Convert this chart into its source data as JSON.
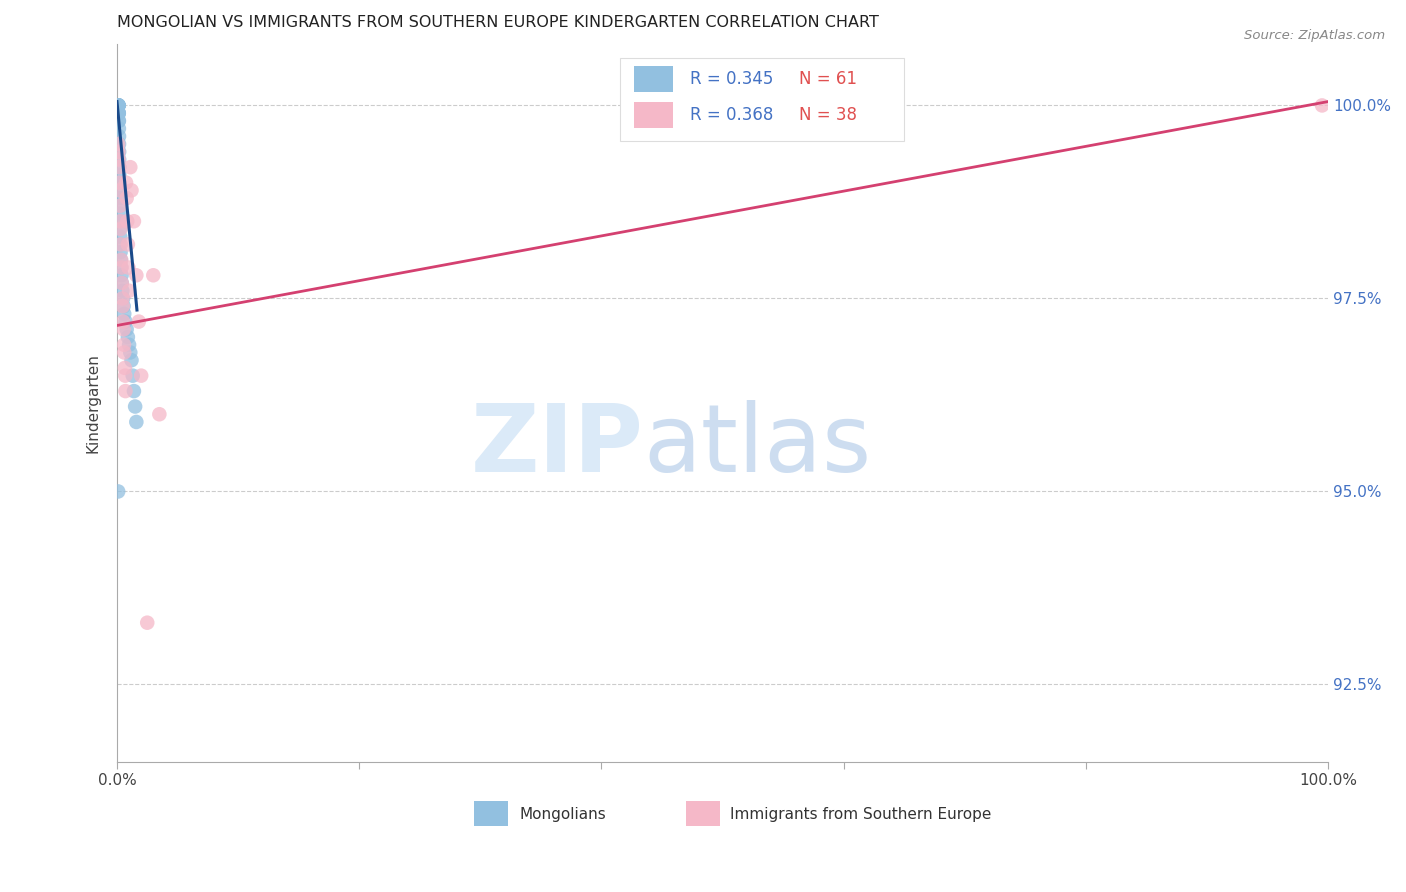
{
  "title": "MONGOLIAN VS IMMIGRANTS FROM SOUTHERN EUROPE KINDERGARTEN CORRELATION CHART",
  "source": "Source: ZipAtlas.com",
  "ylabel": "Kindergarten",
  "yticks": [
    92.5,
    95.0,
    97.5,
    100.0
  ],
  "ytick_labels": [
    "92.5%",
    "95.0%",
    "97.5%",
    "100.0%"
  ],
  "xmin": 0.0,
  "xmax": 100.0,
  "ymin": 91.5,
  "ymax": 100.8,
  "blue_color": "#92c0e0",
  "pink_color": "#f5b8c8",
  "blue_line_color": "#1a4a8a",
  "pink_line_color": "#d44070",
  "grid_color": "#cccccc",
  "background_color": "#ffffff",
  "legend_r_blue": "R = 0.345",
  "legend_n_blue": "N = 61",
  "legend_r_pink": "R = 0.368",
  "legend_n_pink": "N = 38",
  "blue_label": "Mongolians",
  "pink_label": "Immigrants from Southern Europe",
  "blue_scatter_x": [
    0.05,
    0.05,
    0.07,
    0.07,
    0.08,
    0.08,
    0.09,
    0.1,
    0.1,
    0.1,
    0.11,
    0.11,
    0.12,
    0.12,
    0.13,
    0.13,
    0.14,
    0.14,
    0.15,
    0.15,
    0.15,
    0.16,
    0.16,
    0.17,
    0.17,
    0.18,
    0.18,
    0.19,
    0.2,
    0.2,
    0.21,
    0.22,
    0.23,
    0.24,
    0.25,
    0.26,
    0.27,
    0.28,
    0.3,
    0.32,
    0.35,
    0.38,
    0.4,
    0.45,
    0.5,
    0.55,
    0.6,
    0.7,
    0.8,
    0.9,
    1.0,
    1.1,
    1.2,
    1.3,
    1.4,
    1.5,
    1.6,
    0.06,
    0.09,
    0.12,
    0.1
  ],
  "blue_scatter_y": [
    100.0,
    100.0,
    100.0,
    100.0,
    100.0,
    100.0,
    100.0,
    100.0,
    100.0,
    100.0,
    100.0,
    100.0,
    100.0,
    100.0,
    100.0,
    100.0,
    100.0,
    99.9,
    99.9,
    99.9,
    99.8,
    99.8,
    99.7,
    99.6,
    99.5,
    99.4,
    99.3,
    99.2,
    99.1,
    99.0,
    98.9,
    98.8,
    98.7,
    98.6,
    98.5,
    98.4,
    98.3,
    98.2,
    98.1,
    98.0,
    97.9,
    97.8,
    97.7,
    97.6,
    97.5,
    97.4,
    97.3,
    97.2,
    97.1,
    97.0,
    96.9,
    96.8,
    96.7,
    96.5,
    96.3,
    96.1,
    95.9,
    100.0,
    100.0,
    99.9,
    95.0
  ],
  "pink_scatter_x": [
    0.1,
    0.12,
    0.15,
    0.18,
    0.2,
    0.22,
    0.25,
    0.28,
    0.3,
    0.32,
    0.35,
    0.38,
    0.4,
    0.45,
    0.48,
    0.5,
    0.55,
    0.58,
    0.6,
    0.65,
    0.68,
    0.7,
    0.75,
    0.8,
    0.85,
    0.9,
    0.95,
    1.0,
    1.1,
    1.2,
    1.4,
    1.6,
    1.8,
    2.0,
    2.5,
    3.0,
    3.5,
    99.5
  ],
  "pink_scatter_y": [
    99.5,
    99.4,
    99.3,
    99.2,
    99.0,
    98.9,
    98.7,
    98.5,
    98.4,
    98.2,
    98.0,
    97.9,
    97.7,
    97.5,
    97.4,
    97.2,
    97.1,
    96.9,
    96.8,
    96.6,
    96.5,
    96.3,
    99.0,
    98.8,
    98.5,
    98.2,
    97.9,
    97.6,
    99.2,
    98.9,
    98.5,
    97.8,
    97.2,
    96.5,
    93.3,
    97.8,
    96.0,
    100.0
  ],
  "blue_line_x0": 0.0,
  "blue_line_x1": 1.65,
  "blue_line_y0": 100.05,
  "blue_line_y1": 97.35,
  "pink_line_x0": 0.0,
  "pink_line_x1": 100.0,
  "pink_line_y0": 97.15,
  "pink_line_y1": 100.05
}
